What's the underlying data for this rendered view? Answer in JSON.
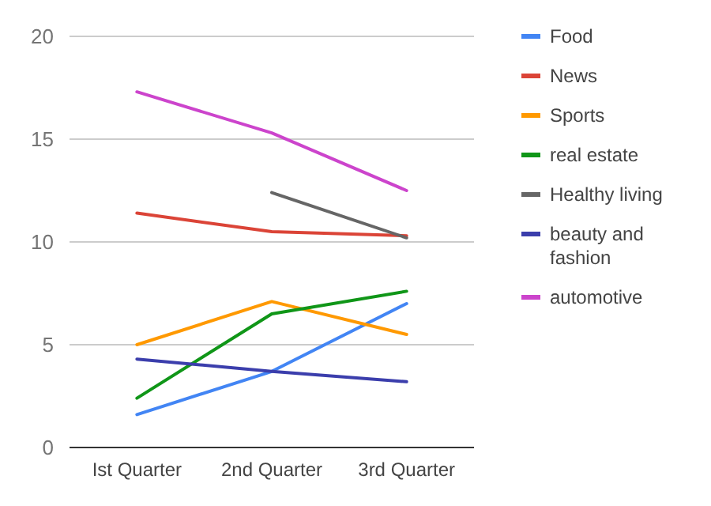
{
  "chart_data": {
    "type": "line",
    "categories": [
      "Ist Quarter",
      "2nd Quarter",
      "3rd Quarter"
    ],
    "ylim": [
      0,
      20
    ],
    "yticks": [
      0,
      5,
      10,
      15,
      20
    ],
    "grid": "y",
    "legend": "right",
    "series": [
      {
        "name": "Food",
        "color": "#4285f4",
        "values": [
          1.6,
          3.7,
          7.0
        ]
      },
      {
        "name": "News",
        "color": "#db4437",
        "values": [
          11.4,
          10.5,
          10.3
        ]
      },
      {
        "name": "Sports",
        "color": "#ff9900",
        "values": [
          5.0,
          7.1,
          5.5
        ]
      },
      {
        "name": "real estate",
        "color": "#109618",
        "values": [
          2.4,
          6.5,
          7.6
        ]
      },
      {
        "name": "Healthy living",
        "color": "#666666",
        "values": [
          null,
          12.4,
          10.2
        ]
      },
      {
        "name": "beauty and fashion",
        "color": "#3b3eac",
        "values": [
          4.3,
          3.7,
          3.2
        ]
      },
      {
        "name": "automotive",
        "color": "#cc44cc",
        "values": [
          17.3,
          15.3,
          12.5
        ]
      }
    ]
  }
}
